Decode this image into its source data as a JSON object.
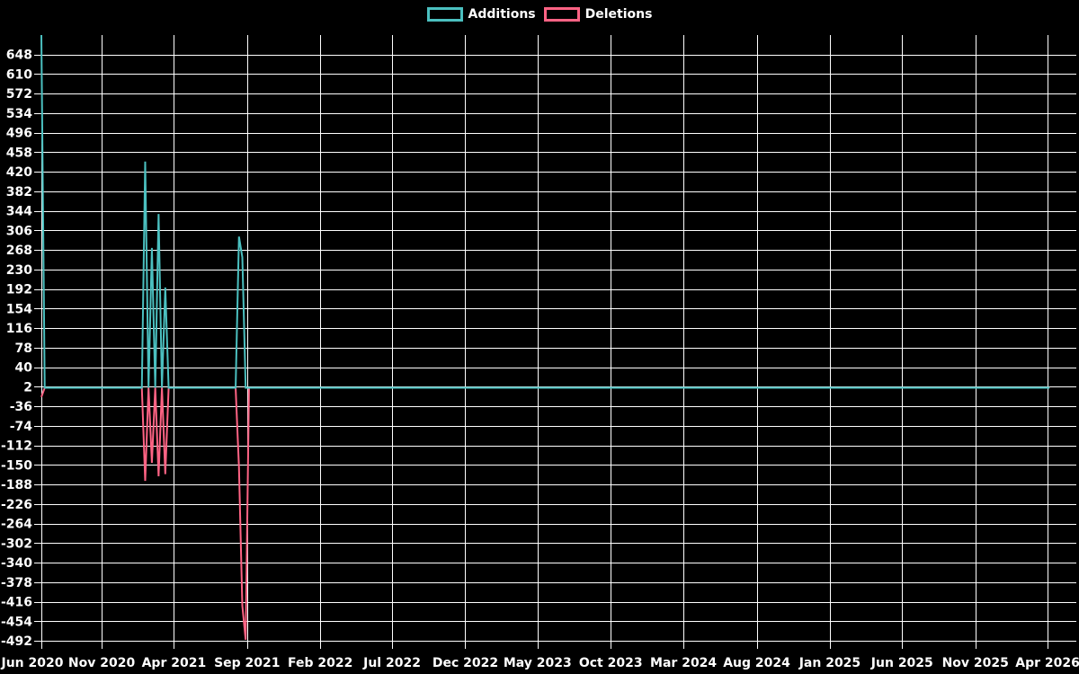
{
  "chart_data": {
    "type": "line",
    "title": "",
    "legend": [
      "Additions",
      "Deletions"
    ],
    "legend_position": "top-center",
    "background_color": "#000000",
    "grid": true,
    "grid_color": "#ffffff",
    "text_color": "#ffffff",
    "x_axis": {
      "type": "time",
      "range": [
        "2020-06-28",
        "2026-05-31"
      ],
      "tick_interval_months": 5,
      "ticks": [
        {
          "date": "2020-06-01",
          "label": "Jun 2020"
        },
        {
          "date": "2020-11-01",
          "label": "Nov 2020"
        },
        {
          "date": "2021-04-01",
          "label": "Apr 2021"
        },
        {
          "date": "2021-09-01",
          "label": "Sep 2021"
        },
        {
          "date": "2022-02-01",
          "label": "Feb 2022"
        },
        {
          "date": "2022-07-01",
          "label": "Jul 2022"
        },
        {
          "date": "2022-12-01",
          "label": "Dec 2022"
        },
        {
          "date": "2023-05-01",
          "label": "May 2023"
        },
        {
          "date": "2023-10-01",
          "label": "Oct 2023"
        },
        {
          "date": "2024-03-01",
          "label": "Mar 2024"
        },
        {
          "date": "2024-08-01",
          "label": "Aug 2024"
        },
        {
          "date": "2025-01-01",
          "label": "Jan 2025"
        },
        {
          "date": "2025-06-01",
          "label": "Jun 2025"
        },
        {
          "date": "2025-11-01",
          "label": "Nov 2025"
        },
        {
          "date": "2026-04-01",
          "label": "Apr 2026"
        }
      ]
    },
    "y_axis": {
      "range": [
        -492,
        686
      ],
      "tick_step": 38,
      "tick_labels": [
        "648",
        "610",
        "572",
        "534",
        "496",
        "458",
        "420",
        "382",
        "344",
        "306",
        "268",
        "230",
        "192",
        "154",
        "116",
        "78",
        "40",
        "2",
        "-36",
        "-74",
        "-112",
        "-150",
        "-188",
        "-226",
        "-264",
        "-302",
        "-340",
        "-378",
        "-416",
        "-454",
        "-492"
      ]
    },
    "series": [
      {
        "name": "Additions",
        "color": "#4BC0C0",
        "frequency": "weekly",
        "first_week": "2020-06-28",
        "last_week": "2026-04-05",
        "default_value": 0,
        "events": {
          "2020-06-28": 686,
          "2021-01-31": 440,
          "2021-02-14": 272,
          "2021-02-28": 338,
          "2021-03-14": 195,
          "2021-08-15": 294,
          "2021-08-22": 254
        }
      },
      {
        "name": "Deletions",
        "color": "#FF6384",
        "frequency": "weekly",
        "first_week": "2020-06-28",
        "last_week": "2026-04-05",
        "default_value": 0,
        "events": {
          "2020-06-28": -18,
          "2021-01-31": -181,
          "2021-02-14": -146,
          "2021-02-28": -172,
          "2021-03-14": -168,
          "2021-08-15": -155,
          "2021-08-22": -424,
          "2021-08-29": -490
        }
      }
    ]
  }
}
